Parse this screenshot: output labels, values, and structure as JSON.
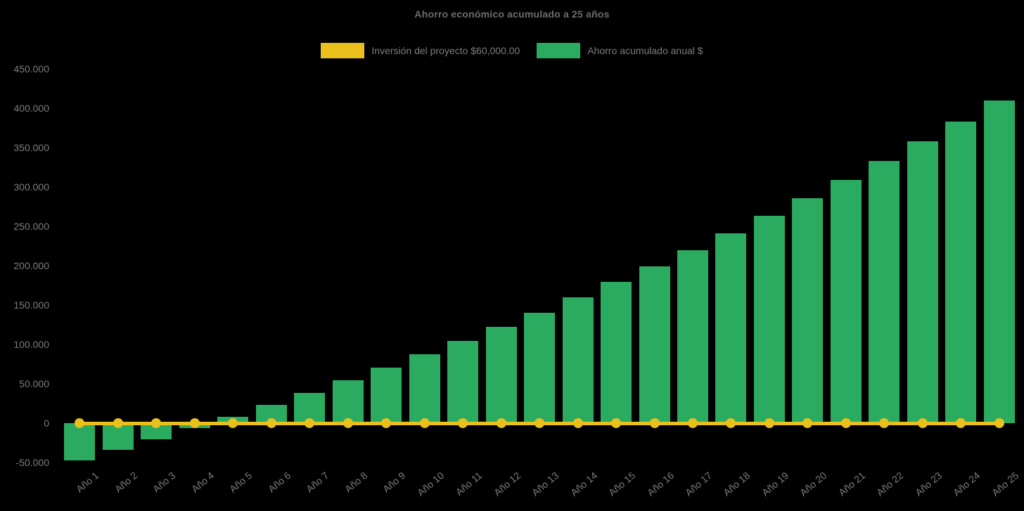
{
  "chart_data": {
    "type": "bar",
    "title": "Ahorro económico acumulado a 25 años",
    "legend_position": "top",
    "grid": false,
    "background_color": "#000000",
    "title_color": "#6d6d6d",
    "axis_text_color": "#7c7c7c",
    "categories": [
      "Año 1",
      "Año 2",
      "Año 3",
      "Año 4",
      "Año 5",
      "Año 6",
      "Año 7",
      "Año 8",
      "Año 9",
      "Año 10",
      "Año 11",
      "Año 12",
      "Año 13",
      "Año 14",
      "Año 15",
      "Año 16",
      "Año 17",
      "Año 18",
      "Año 19",
      "Año 20",
      "Año 21",
      "Año 22",
      "Año 23",
      "Año 24",
      "Año 25"
    ],
    "series": [
      {
        "name": "Inversión del proyecto $60,000.00",
        "type": "line",
        "color": "#eac11c",
        "marker": "circle",
        "values": [
          0,
          0,
          0,
          0,
          0,
          0,
          0,
          0,
          0,
          0,
          0,
          0,
          0,
          0,
          0,
          0,
          0,
          0,
          0,
          0,
          0,
          0,
          0,
          0,
          0
        ]
      },
      {
        "name": "Ahorro acumulado anual $",
        "type": "bar",
        "color": "#2bab60",
        "values": [
          -47100,
          -33800,
          -20100,
          -6100,
          8300,
          23100,
          38500,
          54200,
          70600,
          87300,
          104500,
          122300,
          140600,
          159500,
          179100,
          199100,
          219800,
          241100,
          263000,
          285600,
          308900,
          332900,
          357700,
          383200,
          409400
        ]
      }
    ],
    "y_axis": {
      "min": -50000,
      "max": 450000,
      "step": 50000,
      "tick_labels": [
        "450.000",
        "400.000",
        "350.000",
        "300.000",
        "250.000",
        "200.000",
        "150.000",
        "100.000",
        "50.000",
        "0",
        "-50.000"
      ]
    },
    "x_axis": {
      "label_rotation_deg": -40
    }
  }
}
